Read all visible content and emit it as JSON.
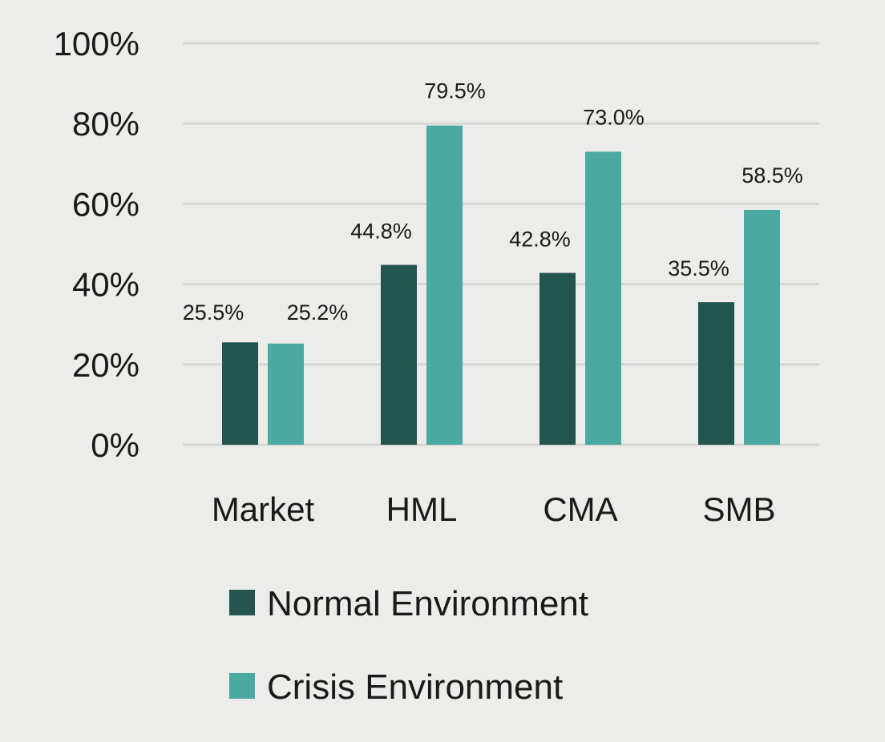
{
  "chart_data": {
    "type": "bar",
    "categories": [
      "Market",
      "HML",
      "CMA",
      "SMB"
    ],
    "series": [
      {
        "name": "Normal Environment",
        "values": [
          25.5,
          44.8,
          42.8,
          35.5
        ],
        "labels": [
          "25.5%",
          "44.8%",
          "42.8%",
          "35.5%"
        ],
        "color": "#23554f"
      },
      {
        "name": "Crisis Environment",
        "values": [
          25.2,
          79.5,
          73.0,
          58.5
        ],
        "labels": [
          "25.2%",
          "79.5%",
          "73.0%",
          "58.5%"
        ],
        "color": "#4aa9a0"
      }
    ],
    "ylim": [
      0,
      100
    ],
    "yticks": [
      0,
      20,
      40,
      60,
      80,
      100
    ],
    "ytick_labels": [
      "0%",
      "20%",
      "40%",
      "60%",
      "80%",
      "100%"
    ],
    "grid": true,
    "gridline_color": "#d6d6d3",
    "legend_position": "bottom",
    "title": "",
    "xlabel": "",
    "ylabel": ""
  }
}
